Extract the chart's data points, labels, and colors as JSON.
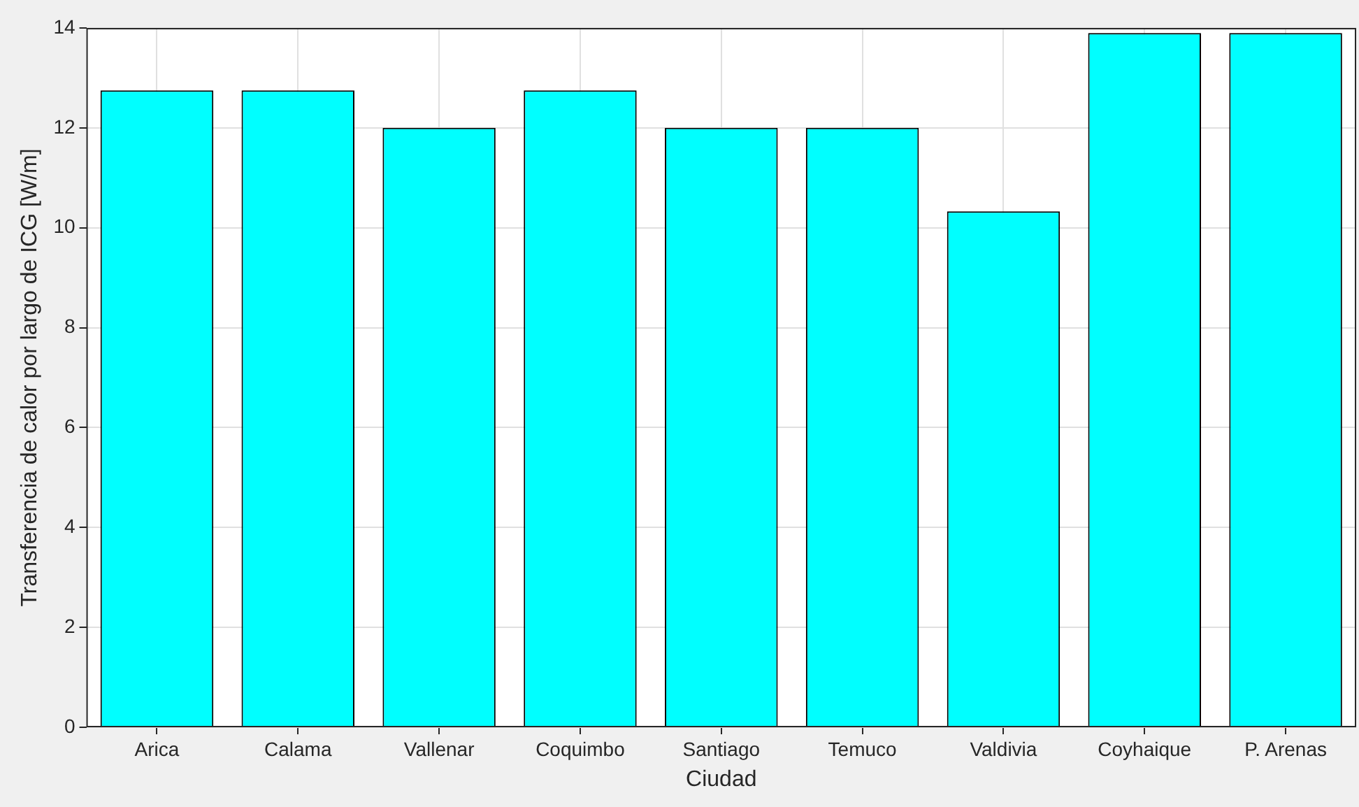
{
  "chart_data": {
    "type": "bar",
    "xlabel": "Ciudad",
    "ylabel": "Transferencia de calor por largo de ICG [W/m]",
    "categories": [
      "Arica",
      "Calama",
      "Vallenar",
      "Coquimbo",
      "Santiago",
      "Temuco",
      "Valdivia",
      "Coyhaique",
      "P. Arenas"
    ],
    "values": [
      12.75,
      12.75,
      12,
      12.75,
      12,
      12,
      10.33,
      13.9,
      13.9
    ],
    "color": "#00ffff",
    "ylim": [
      0,
      14
    ],
    "yticks": [
      0,
      2,
      4,
      6,
      8,
      10,
      12,
      14
    ],
    "grid": true
  }
}
